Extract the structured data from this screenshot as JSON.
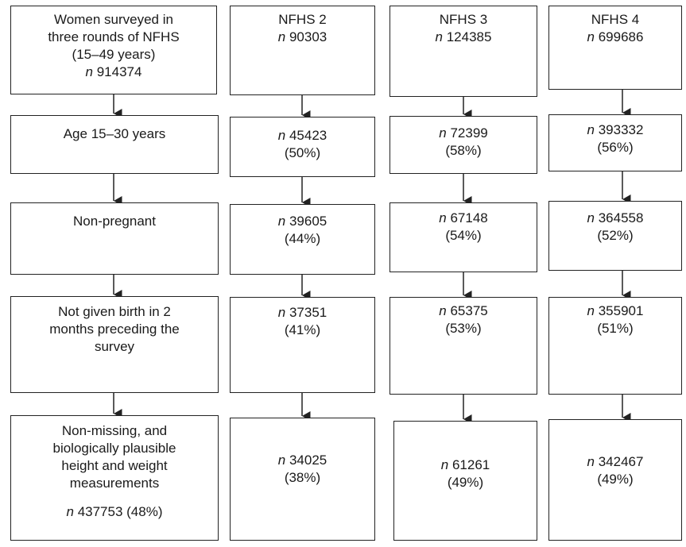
{
  "columns": [
    {
      "id": "overall",
      "cells": [
        {
          "lines": [
            {
              "text": "Women surveyed in"
            },
            {
              "text": "three rounds of NFHS"
            },
            {
              "text": "(15–49 years)"
            },
            {
              "n": "n",
              "text": " 914374"
            }
          ]
        },
        {
          "lines": [
            {
              "text": "Age 15–30 years"
            }
          ]
        },
        {
          "lines": [
            {
              "text": "Non-pregnant"
            }
          ]
        },
        {
          "lines": [
            {
              "text": "Not given birth in 2"
            },
            {
              "text": "months preceding the"
            },
            {
              "text": "survey"
            }
          ]
        },
        {
          "lines": [
            {
              "text": "Non-missing, and"
            },
            {
              "text": "biologically plausible"
            },
            {
              "text": "height and weight"
            },
            {
              "text": "measurements"
            }
          ],
          "footer": {
            "n": "n",
            "text": " 437753 (48%)"
          }
        }
      ]
    },
    {
      "id": "nfhs2",
      "cells": [
        {
          "lines": [
            {
              "text": "NFHS 2"
            },
            {
              "n": "n",
              "text": " 90303"
            }
          ]
        },
        {
          "lines": [
            {
              "n": "n",
              "text": " 45423"
            },
            {
              "text": "(50%)"
            }
          ]
        },
        {
          "lines": [
            {
              "n": "n",
              "text": " 39605"
            },
            {
              "text": "(44%)"
            }
          ]
        },
        {
          "lines": [
            {
              "n": "n",
              "text": " 37351"
            },
            {
              "text": "(41%)"
            }
          ]
        },
        {
          "lines": [
            {
              "n": "n",
              "text": " 34025"
            },
            {
              "text": "(38%)"
            }
          ]
        }
      ]
    },
    {
      "id": "nfhs3",
      "cells": [
        {
          "lines": [
            {
              "text": "NFHS 3"
            },
            {
              "n": "n",
              "text": " 124385"
            }
          ]
        },
        {
          "lines": [
            {
              "n": "n",
              "text": " 72399"
            },
            {
              "text": "(58%)"
            }
          ]
        },
        {
          "lines": [
            {
              "n": "n",
              "text": " 67148"
            },
            {
              "text": "(54%)"
            }
          ]
        },
        {
          "lines": [
            {
              "n": "n",
              "text": " 65375"
            },
            {
              "text": "(53%)"
            }
          ]
        },
        {
          "lines": [
            {
              "n": "n",
              "text": " 61261"
            },
            {
              "text": "(49%)"
            }
          ]
        }
      ]
    },
    {
      "id": "nfhs4",
      "cells": [
        {
          "lines": [
            {
              "text": "NFHS 4"
            },
            {
              "n": "n",
              "text": " 699686"
            }
          ]
        },
        {
          "lines": [
            {
              "n": "n",
              "text": " 393332"
            },
            {
              "text": "(56%)"
            }
          ]
        },
        {
          "lines": [
            {
              "n": "n",
              "text": " 364558"
            },
            {
              "text": "(52%)"
            }
          ]
        },
        {
          "lines": [
            {
              "n": "n",
              "text": " 355901"
            },
            {
              "text": "(51%)"
            }
          ]
        },
        {
          "lines": [
            {
              "n": "n",
              "text": " 342467"
            },
            {
              "text": "(49%)"
            }
          ]
        }
      ]
    }
  ]
}
